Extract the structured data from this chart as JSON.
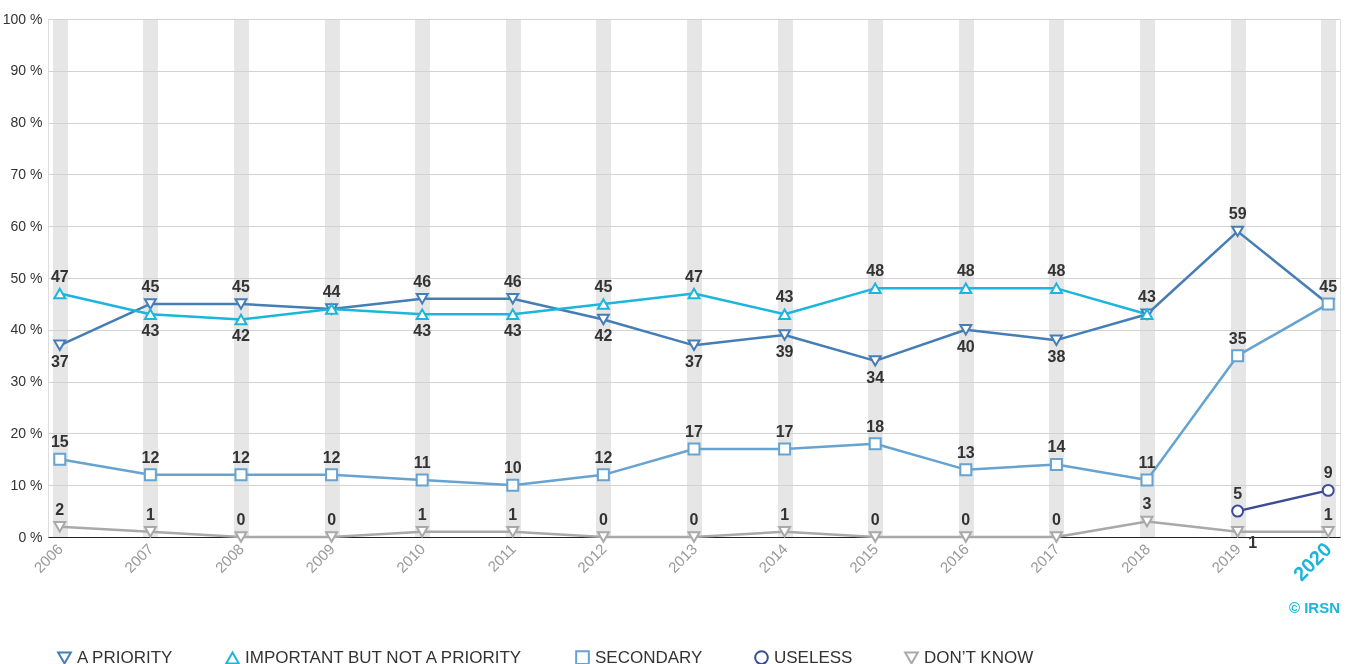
{
  "chart_data": {
    "type": "line",
    "categories": [
      "2006",
      "2007",
      "2008",
      "2009",
      "2010",
      "2011",
      "2012",
      "2013",
      "2014",
      "2015",
      "2016",
      "2017",
      "2018",
      "2019",
      "2020"
    ],
    "series": [
      {
        "name": "A PRIORITY",
        "color": "#457db5",
        "marker": "triangle-down",
        "values": [
          37,
          45,
          45,
          44,
          46,
          46,
          42,
          37,
          39,
          34,
          40,
          38,
          43,
          59,
          45
        ],
        "value_labels": [
          "37",
          "45",
          "45",
          "44",
          "46",
          "46",
          "42",
          "37",
          "39",
          "34",
          "40",
          "38",
          "43",
          "59",
          "45"
        ]
      },
      {
        "name": "IMPORTANT BUT NOT A PRIORITY",
        "color": "#1cb5dc",
        "marker": "triangle",
        "values": [
          47,
          43,
          42,
          44,
          43,
          43,
          45,
          47,
          43,
          48,
          48,
          48,
          43,
          null,
          null
        ],
        "value_labels": [
          "47",
          "43",
          "42",
          null,
          "43",
          "43",
          "45",
          "47",
          "43",
          "48",
          "48",
          "48",
          null,
          null,
          null
        ]
      },
      {
        "name": "SECONDARY",
        "color": "#67a3d0",
        "marker": "square",
        "values": [
          15,
          12,
          12,
          12,
          11,
          10,
          12,
          17,
          17,
          18,
          13,
          14,
          11,
          35,
          45
        ],
        "value_labels": [
          "15",
          "12",
          "12",
          "12",
          "11",
          "10",
          "12",
          "17",
          "17",
          "18",
          "13",
          "14",
          "11",
          "35",
          null
        ]
      },
      {
        "name": "USELESS",
        "color": "#3d4d94",
        "marker": "circle",
        "values": [
          null,
          null,
          null,
          null,
          null,
          null,
          null,
          null,
          null,
          null,
          null,
          null,
          null,
          5,
          9
        ],
        "value_labels": [
          null,
          null,
          null,
          null,
          null,
          null,
          null,
          null,
          null,
          null,
          null,
          null,
          null,
          "5",
          "9"
        ]
      },
      {
        "name": "DON’T KNOW",
        "color": "#a9a9a9",
        "marker": "triangle-down",
        "values": [
          2,
          1,
          0,
          0,
          1,
          1,
          0,
          0,
          1,
          0,
          0,
          0,
          3,
          1,
          1
        ],
        "value_labels": [
          "2",
          "1",
          "0",
          "0",
          "1",
          "1",
          "0",
          "0",
          "1",
          "0",
          "0",
          "0",
          "3",
          "1",
          "1"
        ]
      }
    ],
    "ylim": [
      0,
      100
    ],
    "yticks": [
      {
        "value": 0,
        "label": "0 %"
      },
      {
        "value": 10,
        "label": "10 %"
      },
      {
        "value": 20,
        "label": "20 %"
      },
      {
        "value": 30,
        "label": "30 %"
      },
      {
        "value": 40,
        "label": "40 %"
      },
      {
        "value": 50,
        "label": "50 %"
      },
      {
        "value": 60,
        "label": "60 %"
      },
      {
        "value": 70,
        "label": "70 %"
      },
      {
        "value": 80,
        "label": "80 %"
      },
      {
        "value": 90,
        "label": "90 %"
      },
      {
        "value": 100,
        "label": "100 %"
      }
    ],
    "grid": true,
    "legend": "bottom",
    "line_style": "solid",
    "annotations": [
      "© IRSN"
    ]
  }
}
